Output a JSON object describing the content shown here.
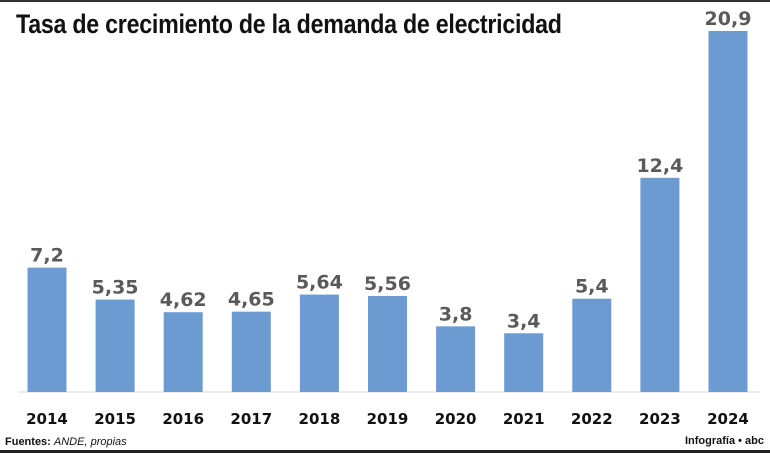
{
  "chart_data": {
    "type": "bar",
    "title": "Tasa de crecimiento de la demanda de electricidad",
    "categories": [
      "2014",
      "2015",
      "2016",
      "2017",
      "2018",
      "2019",
      "2020",
      "2021",
      "2022",
      "2023",
      "2024"
    ],
    "values": [
      7.2,
      5.35,
      4.62,
      4.65,
      5.64,
      5.56,
      3.8,
      3.4,
      5.4,
      12.4,
      20.9
    ],
    "value_labels": [
      "7,2",
      "5,35",
      "4,62",
      "4,65",
      "5,64",
      "5,56",
      "3,8",
      "3,4",
      "5,4",
      "12,4",
      "20,9"
    ],
    "xlabel": "",
    "ylabel": "",
    "ylim": [
      0,
      20.9
    ],
    "grid": false,
    "legend": "none",
    "bar_color": "#6b9bd1"
  },
  "footer": {
    "source_label": "Fuentes:",
    "source_text": "ANDE, propias",
    "credit": "Infografía • abc"
  }
}
